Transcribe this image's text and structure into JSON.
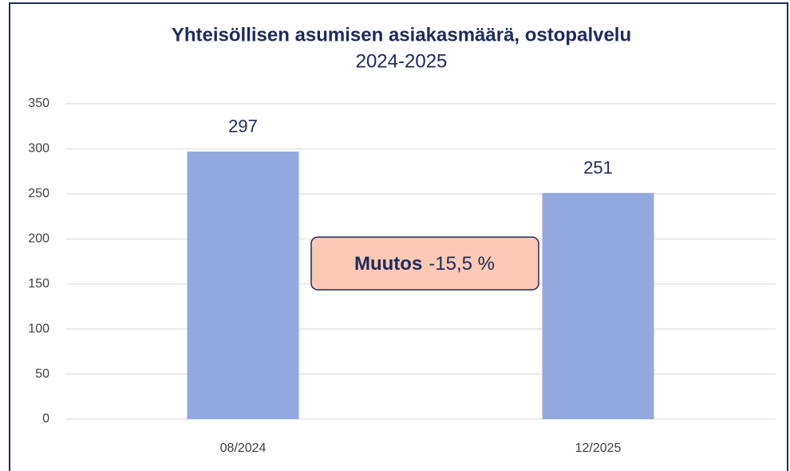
{
  "chart_data": {
    "type": "bar",
    "title": "Yhteisöllisen asumisen asiakasmäärä, ostopalvelu",
    "subtitle": "2024-2025",
    "categories": [
      "08/2024",
      "12/2025"
    ],
    "values": [
      297,
      251
    ],
    "color": "#94a8e0",
    "ylim": [
      0,
      350
    ],
    "yticks": [
      0,
      50,
      100,
      150,
      200,
      250,
      300,
      350
    ],
    "grid": true,
    "annotation": {
      "label": "Muutos",
      "text": "-15,5 %"
    }
  }
}
